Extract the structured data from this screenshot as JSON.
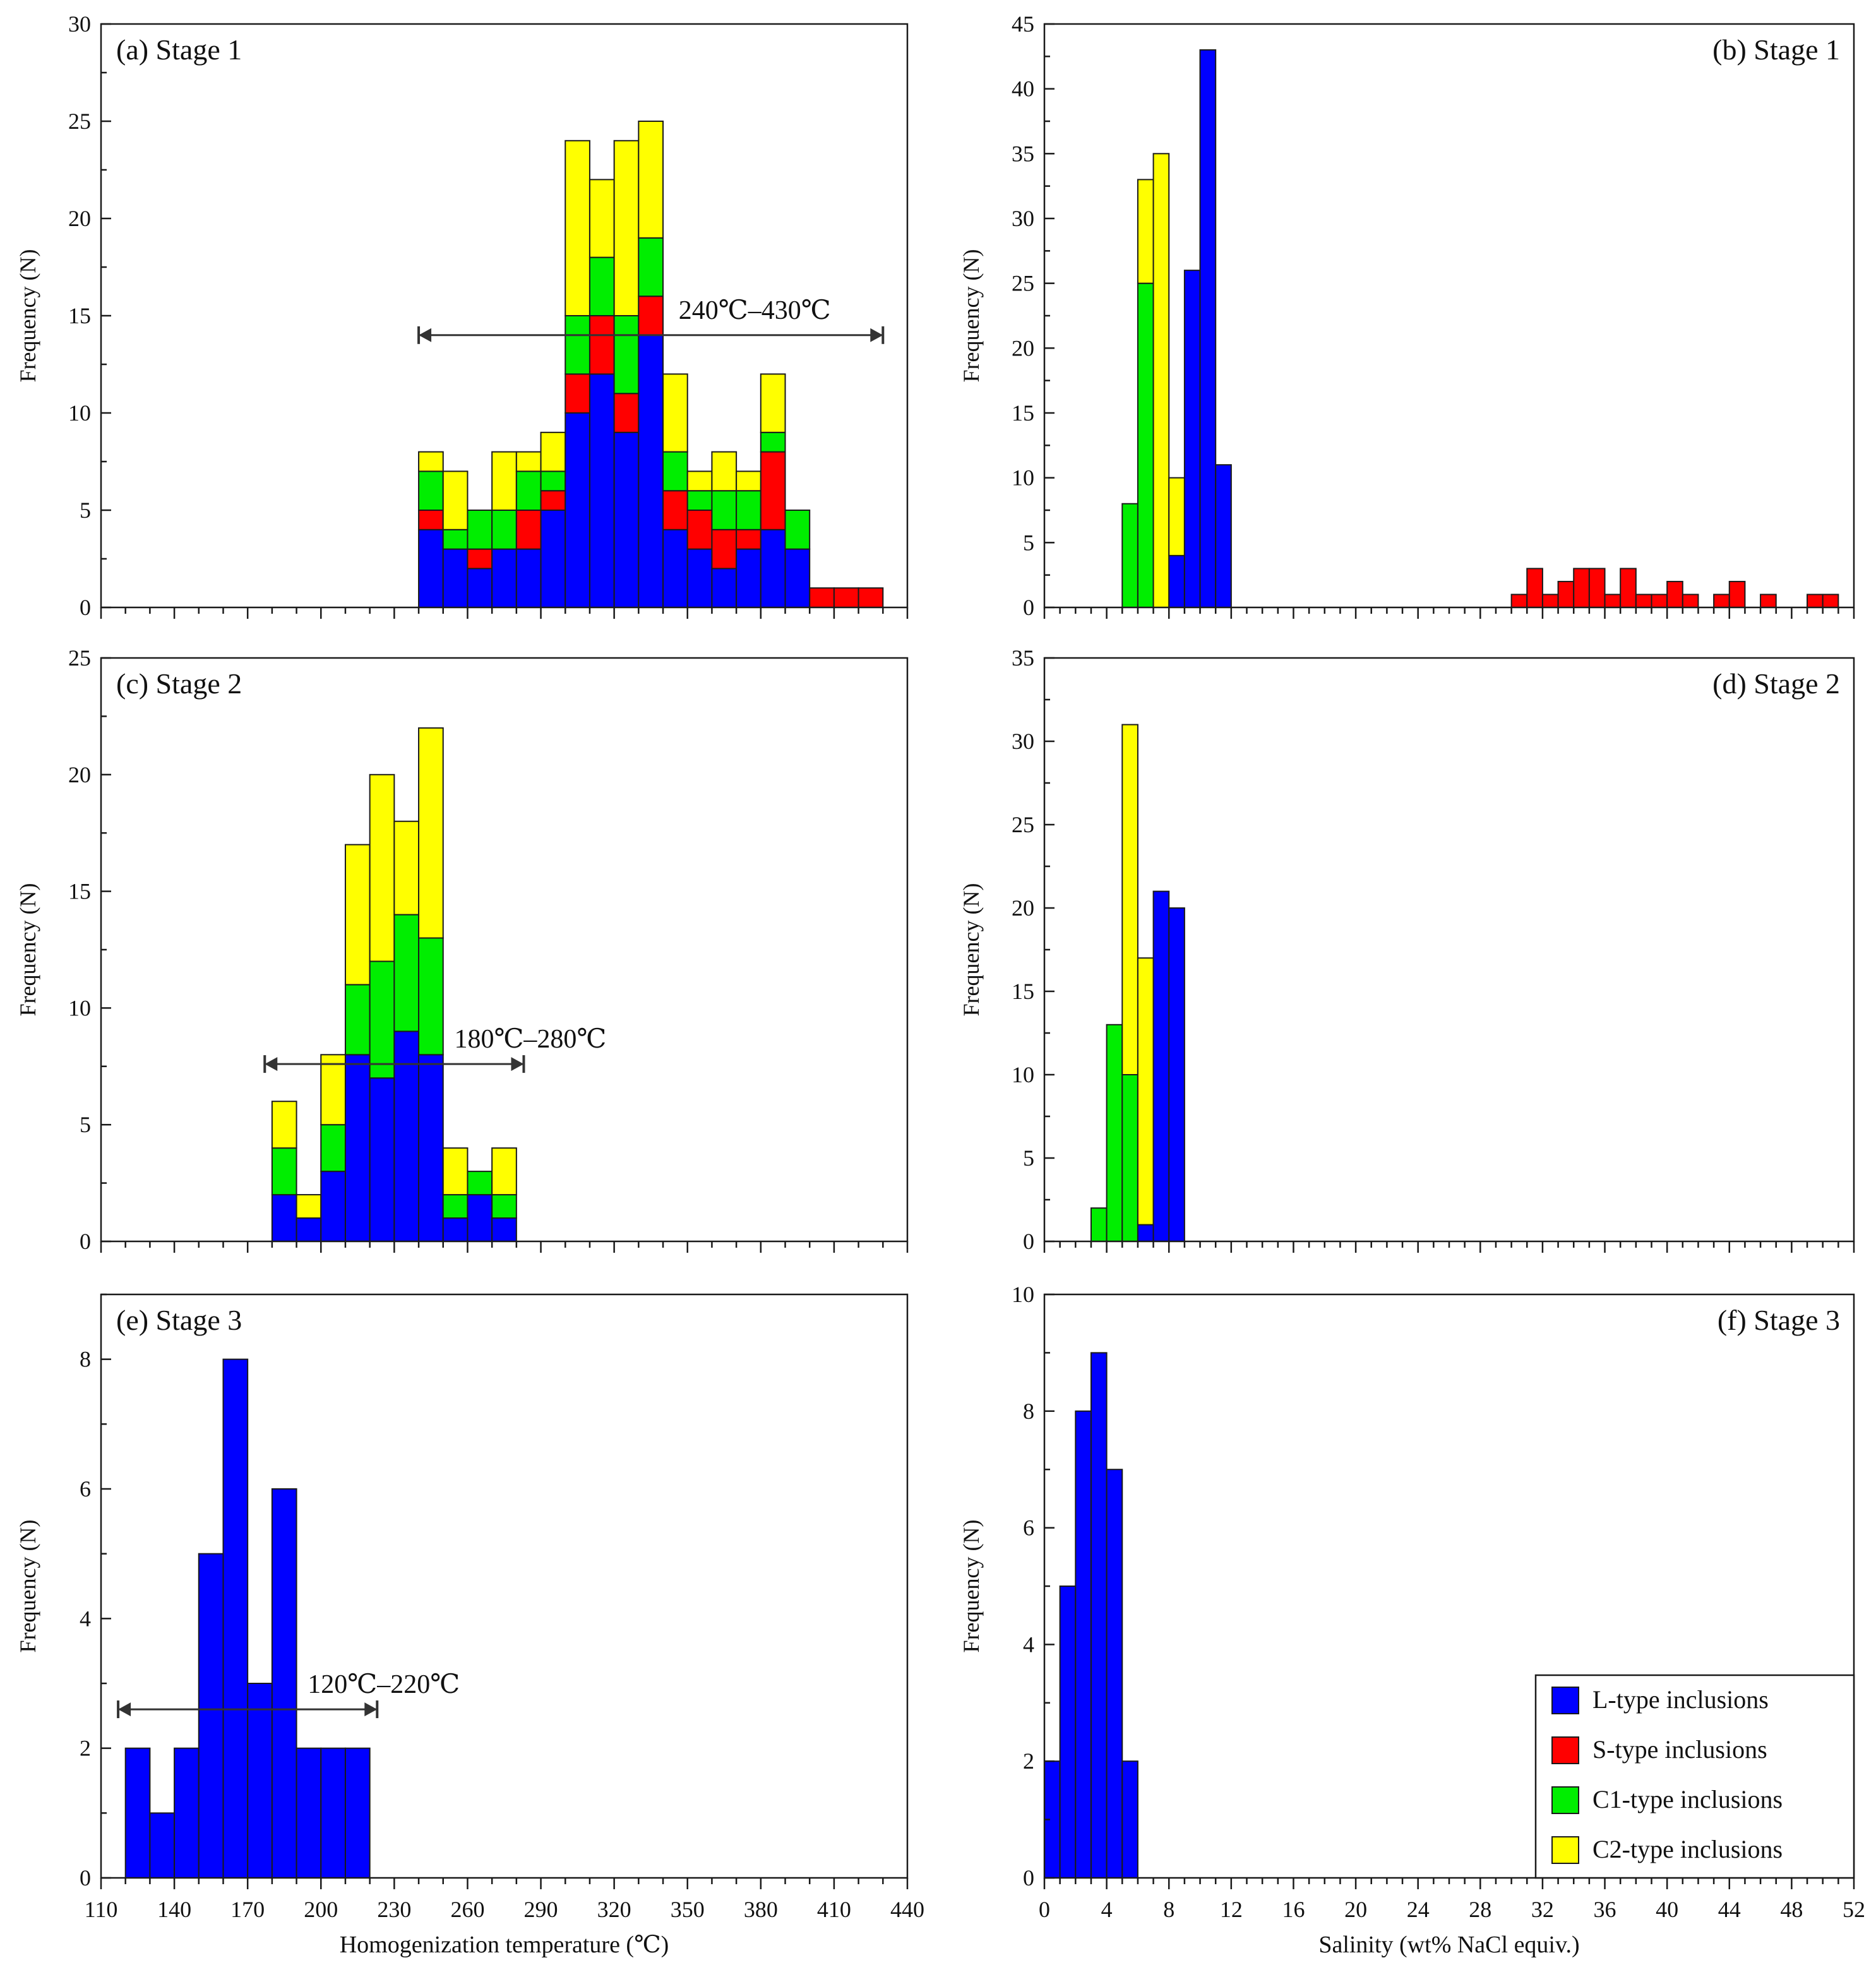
{
  "legend": [
    {
      "label": "L-type inclusions",
      "color": "#0000ff"
    },
    {
      "label": "S-type inclusions",
      "color": "#ff0000"
    },
    {
      "label": "C1-type inclusions",
      "color": "#00ee00"
    },
    {
      "label": "C2-type inclusions",
      "color": "#ffff00"
    }
  ],
  "series_order": [
    "L",
    "S",
    "C1",
    "C2"
  ],
  "series_colors": {
    "L": "#0000ff",
    "S": "#ff0000",
    "C1": "#00ee00",
    "C2": "#ffff00"
  },
  "chart_data": [
    {
      "id": "a",
      "type": "bar",
      "stacked": true,
      "panel_label": "(a) Stage 1",
      "xlabel": "",
      "ylabel": "Frequency (N)",
      "ylim": [
        0,
        30
      ],
      "yticks": [
        0,
        5,
        10,
        15,
        20,
        25,
        30
      ],
      "xlim": [
        110,
        440
      ],
      "xticks": [
        110,
        140,
        170,
        200,
        230,
        260,
        290,
        320,
        350,
        380,
        410,
        440
      ],
      "xtick_labels_shown": false,
      "bin_width": 10,
      "bins": [
        {
          "x0": 240,
          "L": 4,
          "S": 1,
          "C1": 2,
          "C2": 1
        },
        {
          "x0": 250,
          "L": 3,
          "S": 0,
          "C1": 1,
          "C2": 3
        },
        {
          "x0": 260,
          "L": 2,
          "S": 1,
          "C1": 2,
          "C2": 0
        },
        {
          "x0": 270,
          "L": 3,
          "S": 0,
          "C1": 2,
          "C2": 3
        },
        {
          "x0": 280,
          "L": 3,
          "S": 2,
          "C1": 2,
          "C2": 1
        },
        {
          "x0": 290,
          "L": 5,
          "S": 1,
          "C1": 1,
          "C2": 2
        },
        {
          "x0": 300,
          "L": 10,
          "S": 2,
          "C1": 3,
          "C2": 9
        },
        {
          "x0": 310,
          "L": 12,
          "S": 3,
          "C1": 3,
          "C2": 4
        },
        {
          "x0": 320,
          "L": 9,
          "S": 2,
          "C1": 4,
          "C2": 9
        },
        {
          "x0": 330,
          "L": 14,
          "S": 2,
          "C1": 3,
          "C2": 6
        },
        {
          "x0": 340,
          "L": 4,
          "S": 2,
          "C1": 2,
          "C2": 4
        },
        {
          "x0": 350,
          "L": 3,
          "S": 2,
          "C1": 1,
          "C2": 1
        },
        {
          "x0": 360,
          "L": 2,
          "S": 2,
          "C1": 2,
          "C2": 2
        },
        {
          "x0": 370,
          "L": 3,
          "S": 1,
          "C1": 2,
          "C2": 1
        },
        {
          "x0": 380,
          "L": 4,
          "S": 4,
          "C1": 1,
          "C2": 3
        },
        {
          "x0": 390,
          "L": 3,
          "S": 0,
          "C1": 2,
          "C2": 0
        },
        {
          "x0": 400,
          "L": 0,
          "S": 1,
          "C1": 0,
          "C2": 0
        },
        {
          "x0": 410,
          "L": 0,
          "S": 1,
          "C1": 0,
          "C2": 0
        },
        {
          "x0": 420,
          "L": 0,
          "S": 1,
          "C1": 0,
          "C2": 0
        }
      ],
      "annotation": {
        "text": "240℃–430℃",
        "x1": 240,
        "x2": 430,
        "y": 14
      }
    },
    {
      "id": "b",
      "type": "bar",
      "stacked": true,
      "panel_label": "(b) Stage 1",
      "xlabel": "",
      "ylabel": "Frequency (N)",
      "ylim": [
        0,
        45
      ],
      "yticks": [
        0,
        5,
        10,
        15,
        20,
        25,
        30,
        35,
        40,
        45
      ],
      "xlim": [
        0,
        52
      ],
      "xticks": [
        0,
        4,
        8,
        12,
        16,
        20,
        24,
        28,
        32,
        36,
        40,
        44,
        48,
        52
      ],
      "xtick_labels_shown": false,
      "bin_width": 1,
      "bins": [
        {
          "x0": 5,
          "C1": 8
        },
        {
          "x0": 6,
          "C1": 25,
          "C2": 8
        },
        {
          "x0": 7,
          "C2": 35
        },
        {
          "x0": 8,
          "L": 4,
          "C2": 6
        },
        {
          "x0": 9,
          "L": 26
        },
        {
          "x0": 10,
          "L": 43
        },
        {
          "x0": 11,
          "L": 11
        },
        {
          "x0": 30,
          "S": 1
        },
        {
          "x0": 31,
          "S": 3
        },
        {
          "x0": 32,
          "S": 1
        },
        {
          "x0": 33,
          "S": 2
        },
        {
          "x0": 34,
          "S": 3
        },
        {
          "x0": 35,
          "S": 3
        },
        {
          "x0": 36,
          "S": 1
        },
        {
          "x0": 37,
          "S": 3
        },
        {
          "x0": 38,
          "S": 1
        },
        {
          "x0": 39,
          "S": 1
        },
        {
          "x0": 40,
          "S": 2
        },
        {
          "x0": 41,
          "S": 1
        },
        {
          "x0": 43,
          "S": 1
        },
        {
          "x0": 44,
          "S": 2
        },
        {
          "x0": 46,
          "S": 1
        },
        {
          "x0": 49,
          "S": 1
        },
        {
          "x0": 50,
          "S": 1
        }
      ]
    },
    {
      "id": "c",
      "type": "bar",
      "stacked": true,
      "panel_label": "(c) Stage 2",
      "xlabel": "",
      "ylabel": "Frequency (N)",
      "ylim": [
        0,
        25
      ],
      "yticks": [
        0,
        5,
        10,
        15,
        20,
        25
      ],
      "xlim": [
        110,
        440
      ],
      "xticks": [
        110,
        140,
        170,
        200,
        230,
        260,
        290,
        320,
        350,
        380,
        410,
        440
      ],
      "xtick_labels_shown": false,
      "bin_width": 10,
      "bins": [
        {
          "x0": 180,
          "L": 2,
          "C1": 2,
          "C2": 2
        },
        {
          "x0": 190,
          "L": 1,
          "C1": 0,
          "C2": 1
        },
        {
          "x0": 200,
          "L": 3,
          "C1": 2,
          "C2": 3
        },
        {
          "x0": 210,
          "L": 8,
          "C1": 3,
          "C2": 6
        },
        {
          "x0": 220,
          "L": 7,
          "C1": 5,
          "C2": 8
        },
        {
          "x0": 230,
          "L": 9,
          "C1": 5,
          "C2": 4
        },
        {
          "x0": 240,
          "L": 8,
          "C1": 5,
          "C2": 9
        },
        {
          "x0": 250,
          "L": 1,
          "C1": 1,
          "C2": 2
        },
        {
          "x0": 260,
          "L": 2,
          "C1": 1,
          "C2": 0
        },
        {
          "x0": 270,
          "L": 1,
          "C1": 1,
          "C2": 2
        }
      ],
      "annotation": {
        "text": "180℃–280℃",
        "x1": 177,
        "x2": 283,
        "y": 7.6
      }
    },
    {
      "id": "d",
      "type": "bar",
      "stacked": true,
      "panel_label": "(d) Stage 2",
      "xlabel": "",
      "ylabel": "Frequency (N)",
      "ylim": [
        0,
        35
      ],
      "yticks": [
        0,
        5,
        10,
        15,
        20,
        25,
        30,
        35
      ],
      "xlim": [
        0,
        52
      ],
      "xticks": [
        0,
        4,
        8,
        12,
        16,
        20,
        24,
        28,
        32,
        36,
        40,
        44,
        48,
        52
      ],
      "xtick_labels_shown": false,
      "bin_width": 1,
      "bins": [
        {
          "x0": 3,
          "C1": 2
        },
        {
          "x0": 4,
          "C1": 13
        },
        {
          "x0": 5,
          "C1": 10,
          "C2": 21
        },
        {
          "x0": 6,
          "L": 1,
          "C2": 16
        },
        {
          "x0": 7,
          "L": 21
        },
        {
          "x0": 8,
          "L": 20
        }
      ]
    },
    {
      "id": "e",
      "type": "bar",
      "stacked": true,
      "panel_label": "(e) Stage 3",
      "xlabel": "Homogenization temperature (℃)",
      "ylabel": "Frequency (N)",
      "ylim": [
        0,
        9
      ],
      "yticks": [
        0,
        2,
        4,
        6,
        8
      ],
      "xlim": [
        110,
        440
      ],
      "xticks": [
        110,
        140,
        170,
        200,
        230,
        260,
        290,
        320,
        350,
        380,
        410,
        440
      ],
      "xtick_labels_shown": true,
      "bin_width": 10,
      "bins": [
        {
          "x0": 120,
          "L": 2
        },
        {
          "x0": 130,
          "L": 1
        },
        {
          "x0": 140,
          "L": 2
        },
        {
          "x0": 150,
          "L": 5
        },
        {
          "x0": 160,
          "L": 8
        },
        {
          "x0": 170,
          "L": 3
        },
        {
          "x0": 180,
          "L": 6
        },
        {
          "x0": 190,
          "L": 2
        },
        {
          "x0": 200,
          "L": 2
        },
        {
          "x0": 210,
          "L": 2
        }
      ],
      "annotation": {
        "text": "120℃–220℃",
        "x1": 117,
        "x2": 223,
        "y": 2.6
      }
    },
    {
      "id": "f",
      "type": "bar",
      "stacked": true,
      "panel_label": "(f) Stage 3",
      "xlabel": "Salinity (wt% NaCl equiv.)",
      "ylabel": "Frequency (N)",
      "ylim": [
        0,
        10
      ],
      "yticks": [
        0,
        2,
        4,
        6,
        8,
        10
      ],
      "xlim": [
        0,
        52
      ],
      "xticks": [
        0,
        4,
        8,
        12,
        16,
        20,
        24,
        28,
        32,
        36,
        40,
        44,
        48,
        52
      ],
      "xtick_labels_shown": true,
      "bin_width": 1,
      "bins": [
        {
          "x0": 0,
          "L": 2
        },
        {
          "x0": 1,
          "L": 5
        },
        {
          "x0": 2,
          "L": 8
        },
        {
          "x0": 3,
          "L": 9
        },
        {
          "x0": 4,
          "L": 7
        },
        {
          "x0": 5,
          "L": 2
        }
      ]
    }
  ]
}
